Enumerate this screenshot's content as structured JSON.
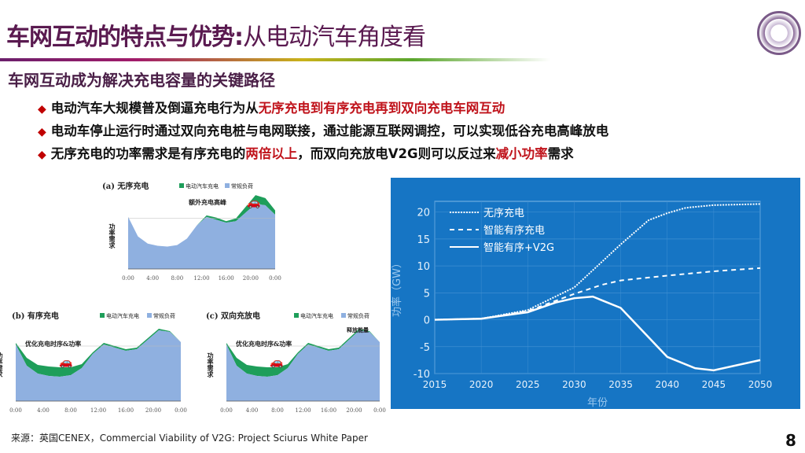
{
  "header": {
    "title_bold": "车网互动的特点与优势:",
    "title_light": "从电动汽车角度看",
    "subtitle": "车网互动成为解决充电容量的关键路径",
    "logo": "university-seal-logo"
  },
  "bullets": [
    {
      "parts": [
        {
          "text": "电动汽车大规模普及倒逼充电行为从",
          "highlight": false
        },
        {
          "text": "无序充电到有序充电再到双向充电车网互动",
          "highlight": true
        }
      ]
    },
    {
      "parts": [
        {
          "text": "电动车停止运行时通过双向充电桩与电网联接，通过能源互联网调控，可以实现低谷充电高峰放电",
          "highlight": false
        }
      ]
    },
    {
      "parts": [
        {
          "text": "无序充电的功率需求是有序充电的",
          "highlight": false
        },
        {
          "text": "两倍以上",
          "highlight": true
        },
        {
          "text": "，而双向充放电V2G则可以反过来",
          "highlight": false
        },
        {
          "text": "减小功率",
          "highlight": true
        },
        {
          "text": "需求",
          "highlight": false
        }
      ]
    }
  ],
  "colors": {
    "title": "#5a1a50",
    "highlight": "#c0141c",
    "chart_bg": "#1675c4",
    "ev_charging": "#1e9e5a",
    "base_load": "#8fb0e0"
  },
  "mini_charts": [
    {
      "label": "(a) 无序充电",
      "legend_ev": "电动汽车充电",
      "legend_base": "常规负荷",
      "ylabel": "功率需求",
      "annotation": "额外充电高峰",
      "xticks": [
        "0:00",
        "4:00",
        "8:00",
        "12:00",
        "16:00",
        "20:00",
        "0:00"
      ]
    },
    {
      "label": "(b) 有序充电",
      "legend_ev": "电动汽车充电",
      "legend_base": "常规负荷",
      "ylabel": "功率需求",
      "annotation": "优化充电时序&功率",
      "xticks": [
        "0:00",
        "4:00",
        "8:00",
        "12:00",
        "16:00",
        "20:00",
        "0:00"
      ]
    },
    {
      "label": "(c) 双向充放电",
      "legend_ev": "电动汽车充电",
      "legend_base": "常规负荷",
      "ylabel": "功率需求",
      "annotation": "优化充电时序&功率",
      "annotation2": "释放能量",
      "xticks": [
        "0:00",
        "4:00",
        "8:00",
        "12:00",
        "16:00",
        "20:00",
        "0:00"
      ]
    }
  ],
  "chart_data": {
    "type": "line",
    "xlabel": "年份",
    "ylabel": "功率（GW）",
    "xlim": [
      2015,
      2050
    ],
    "ylim": [
      -10,
      22
    ],
    "xticks": [
      2015,
      2020,
      2025,
      2030,
      2035,
      2040,
      2045,
      2050
    ],
    "yticks": [
      -10,
      -5,
      0,
      5,
      10,
      15,
      20
    ],
    "grid": true,
    "legend": "top-left",
    "series": [
      {
        "name": "无序充电",
        "style": "dotted",
        "x": [
          2015,
          2020,
          2025,
          2030,
          2035,
          2038,
          2040,
          2042,
          2045,
          2050
        ],
        "y": [
          0,
          0.2,
          1.8,
          6,
          14,
          18.5,
          19.8,
          20.8,
          21.3,
          21.5
        ]
      },
      {
        "name": "智能有序充电",
        "style": "dashed",
        "x": [
          2015,
          2020,
          2025,
          2030,
          2033,
          2035,
          2040,
          2045,
          2050
        ],
        "y": [
          0,
          0.2,
          1.6,
          4.8,
          6.5,
          7.3,
          8.2,
          9,
          9.6
        ]
      },
      {
        "name": "智能有序+V2G",
        "style": "solid",
        "x": [
          2015,
          2020,
          2025,
          2028,
          2030,
          2032,
          2035,
          2040,
          2043,
          2045,
          2050
        ],
        "y": [
          0,
          0.2,
          1.4,
          3.2,
          4,
          4.3,
          2.2,
          -6.9,
          -9,
          -9.4,
          -7.5
        ]
      }
    ]
  },
  "footer": {
    "source": "来源：英国CENEX，Commercial Viability of V2G: Project Sciurus White Paper",
    "page": "8"
  }
}
